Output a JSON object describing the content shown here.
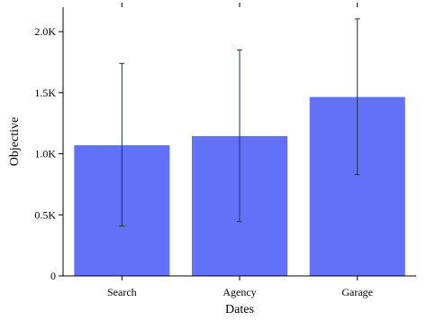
{
  "chart_data": {
    "type": "bar",
    "title": "",
    "xlabel": "Dates",
    "ylabel": "Objective",
    "categories": [
      "Search",
      "Agency",
      "Garage"
    ],
    "values": [
      1070,
      1145,
      1465
    ],
    "error_low": [
      410,
      445,
      830
    ],
    "error_high": [
      1740,
      1850,
      2105
    ],
    "ylim": [
      0,
      2200
    ],
    "yticks": [
      0,
      500,
      1000,
      1500,
      2000
    ],
    "ytick_labels": [
      "0",
      "0.5K",
      "1.0K",
      "1.5K",
      "2.0K"
    ],
    "bar_color": "#6370f8",
    "error_color": "#1b3350",
    "grid": false,
    "legend": "none"
  }
}
